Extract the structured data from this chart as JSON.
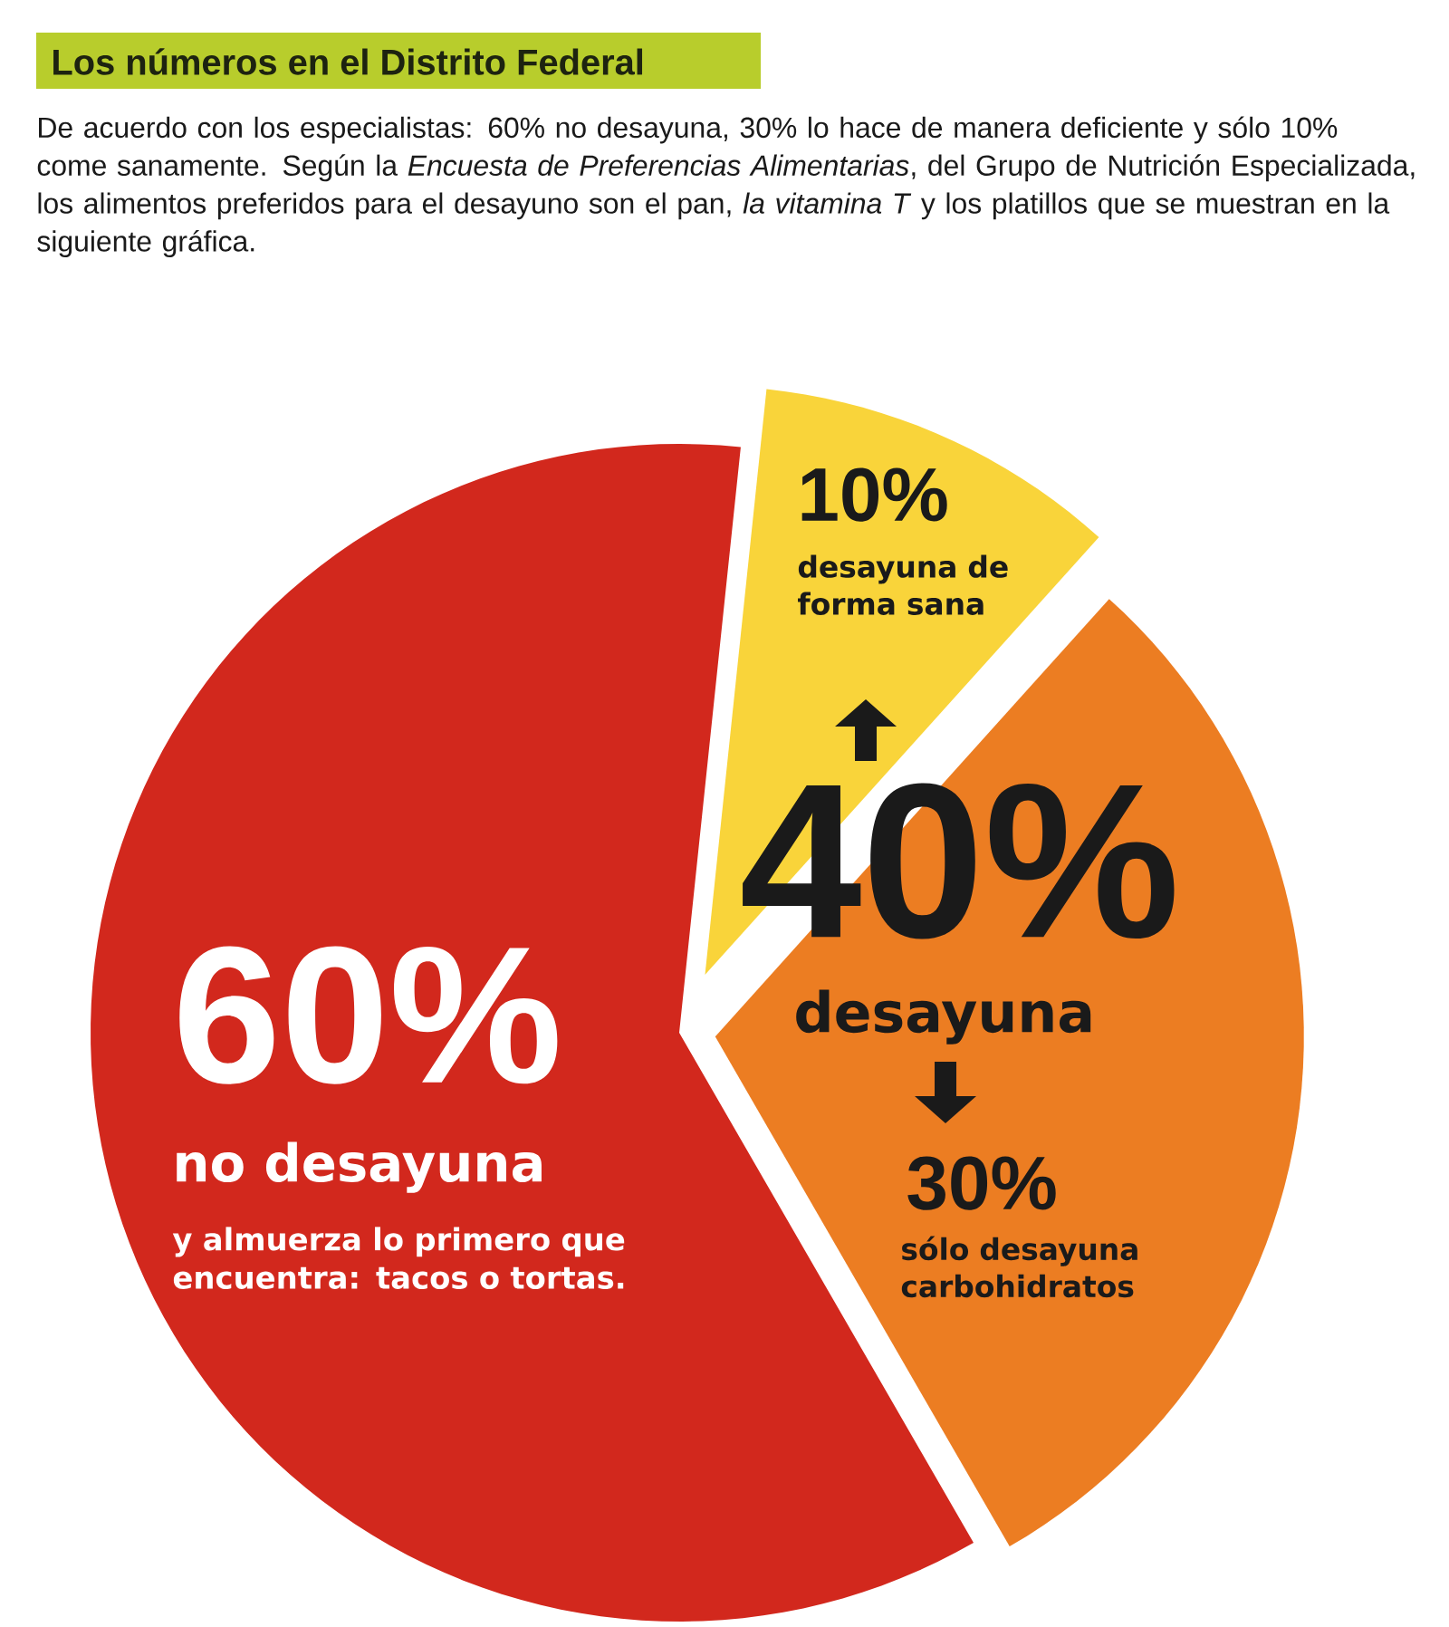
{
  "chart_data": {
    "type": "pie",
    "title": "Los números en el Distrito Federal",
    "subtitle": "De acuerdo con los especialistas: 60% no desayuna, 30% lo hace de manera deficiente y sólo 10% come sanamente. Según la *Encuesta de Preferencias Alimentarias*, del Grupo de Nutrición Especializada, los alimentos preferidos para el desayuno son el pan, *la vitamina T* y los platillos que se muestran en la siguiente gráfica.",
    "categories": [
      "no desayuna",
      "sólo desayuna carbohidratos",
      "desayuna de forma sana"
    ],
    "values": [
      60,
      30,
      10
    ],
    "colors": [
      "#d2281d",
      "#ec7d22",
      "#f9d43a"
    ],
    "value_labels": [
      "60%",
      "30%",
      "10%"
    ],
    "annotations": [
      "y almuerza lo primero que encuentra: tacos o tortas.",
      "40%",
      "desayuna"
    ]
  }
}
